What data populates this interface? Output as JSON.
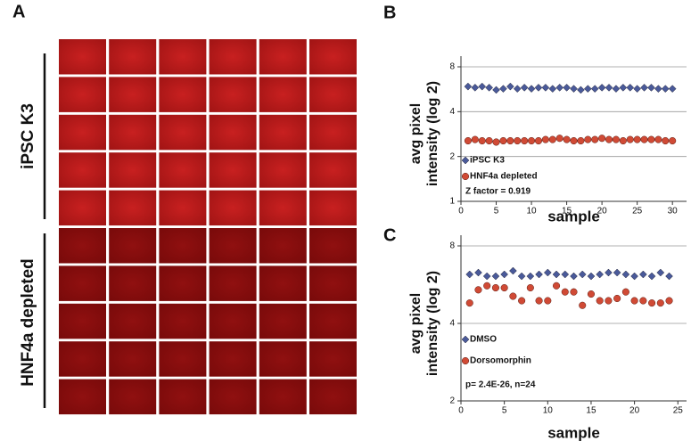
{
  "panel_a": {
    "letter": "A",
    "groups": [
      "iPSC K3",
      "HNF4a depleted"
    ]
  },
  "chart_data": [
    {
      "type": "scatter",
      "letter": "B",
      "x_label": "sample",
      "y_label": [
        "avg pixel",
        "intensity (log 2)"
      ],
      "annotation": "Z factor = 0.919",
      "log_scale": 2,
      "grid": true,
      "x": [
        1,
        2,
        3,
        4,
        5,
        6,
        7,
        8,
        9,
        10,
        11,
        12,
        13,
        14,
        15,
        16,
        17,
        18,
        19,
        20,
        21,
        22,
        23,
        24,
        25,
        26,
        27,
        28,
        29,
        30
      ],
      "xlim": [
        0,
        32
      ],
      "xticks": [
        0,
        5,
        10,
        15,
        20,
        25,
        30
      ],
      "ylim": [
        1,
        8
      ],
      "yticks": [
        1,
        2,
        4,
        8
      ],
      "series": [
        {
          "name": "iPSC K3",
          "color": "#4a5a9a",
          "marker": "diamond",
          "values": [
            5.9,
            5.8,
            5.9,
            5.8,
            5.6,
            5.7,
            5.9,
            5.7,
            5.8,
            5.7,
            5.8,
            5.8,
            5.7,
            5.8,
            5.8,
            5.7,
            5.6,
            5.7,
            5.7,
            5.8,
            5.8,
            5.7,
            5.8,
            5.8,
            5.7,
            5.8,
            5.8,
            5.7,
            5.7,
            5.7
          ]
        },
        {
          "name": "HNF4a depleted",
          "color": "#d04a35",
          "marker": "circle",
          "values": [
            2.55,
            2.6,
            2.55,
            2.55,
            2.5,
            2.55,
            2.55,
            2.55,
            2.55,
            2.55,
            2.55,
            2.6,
            2.6,
            2.65,
            2.6,
            2.55,
            2.55,
            2.6,
            2.6,
            2.65,
            2.6,
            2.6,
            2.55,
            2.6,
            2.6,
            2.6,
            2.6,
            2.6,
            2.55,
            2.55
          ]
        }
      ]
    },
    {
      "type": "scatter",
      "letter": "C",
      "x_label": "sample",
      "y_label": [
        "avg pixel",
        "intensity (log 2)"
      ],
      "annotation": "p= 2.4E-26, n=24",
      "log_scale": 2,
      "grid": true,
      "x": [
        1,
        2,
        3,
        4,
        5,
        6,
        7,
        8,
        9,
        10,
        11,
        12,
        13,
        14,
        15,
        16,
        17,
        18,
        19,
        20,
        21,
        22,
        23,
        24
      ],
      "xlim": [
        0,
        26
      ],
      "xticks": [
        0,
        5,
        10,
        15,
        20,
        25
      ],
      "ylim": [
        2,
        8
      ],
      "yticks": [
        2,
        4,
        8
      ],
      "series": [
        {
          "name": "DMSO",
          "color": "#4a5a9a",
          "marker": "diamond",
          "values": [
            6.2,
            6.3,
            6.1,
            6.1,
            6.2,
            6.4,
            6.1,
            6.1,
            6.2,
            6.3,
            6.2,
            6.2,
            6.1,
            6.2,
            6.1,
            6.2,
            6.3,
            6.3,
            6.2,
            6.1,
            6.2,
            6.1,
            6.3,
            6.1
          ]
        },
        {
          "name": "Dorsomorphin",
          "color": "#d04a35",
          "marker": "circle",
          "values": [
            4.8,
            5.4,
            5.6,
            5.5,
            5.5,
            5.1,
            4.9,
            5.5,
            4.9,
            4.9,
            5.6,
            5.3,
            5.3,
            4.7,
            5.2,
            4.9,
            4.9,
            5.0,
            5.3,
            4.9,
            4.9,
            4.8,
            4.8,
            4.9
          ]
        }
      ]
    }
  ]
}
